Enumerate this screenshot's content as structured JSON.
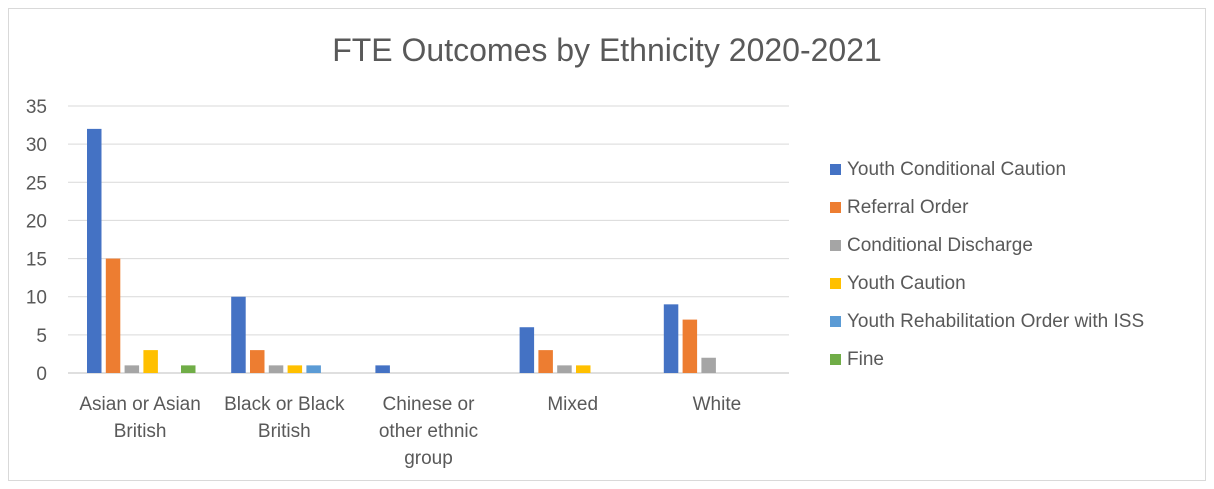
{
  "chart_data": {
    "type": "bar",
    "title": "FTE Outcomes by Ethnicity 2020-2021",
    "xlabel": "",
    "ylabel": "",
    "ylim": [
      0,
      35
    ],
    "yticks": [
      0,
      5,
      10,
      15,
      20,
      25,
      30,
      35
    ],
    "grid": true,
    "legend_position": "right",
    "categories": [
      [
        "Asian or Asian",
        "British"
      ],
      [
        "Black or Black",
        "British"
      ],
      [
        "Chinese or",
        "other ethnic",
        "group"
      ],
      [
        "Mixed"
      ],
      [
        "White"
      ]
    ],
    "series": [
      {
        "name": "Youth Conditional Caution",
        "color": "#4472c4",
        "values": [
          32,
          10,
          1,
          6,
          9
        ]
      },
      {
        "name": "Referral Order",
        "color": "#ed7d31",
        "values": [
          15,
          3,
          0,
          3,
          7
        ]
      },
      {
        "name": "Conditional Discharge",
        "color": "#a5a5a5",
        "values": [
          1,
          1,
          0,
          1,
          2
        ]
      },
      {
        "name": "Youth Caution",
        "color": "#ffc000",
        "values": [
          3,
          1,
          0,
          1,
          0
        ]
      },
      {
        "name": "Youth Rehabilitation Order with ISS",
        "color": "#5b9bd5",
        "values": [
          0,
          1,
          0,
          0,
          0
        ]
      },
      {
        "name": "Fine",
        "color": "#70ad47",
        "values": [
          1,
          0,
          0,
          0,
          0
        ]
      }
    ]
  }
}
